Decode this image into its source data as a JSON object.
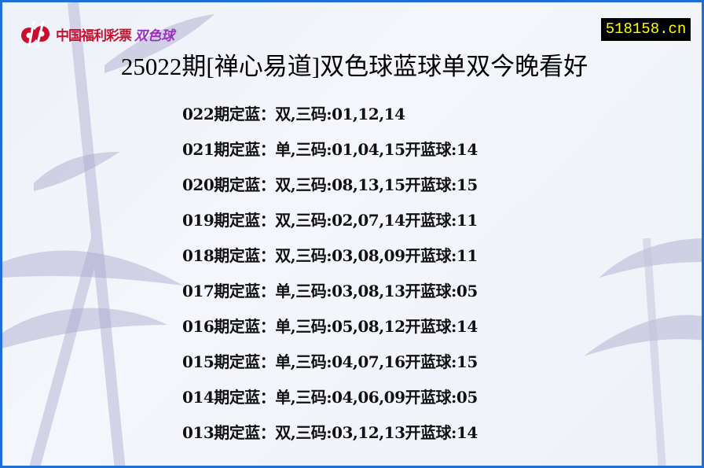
{
  "logo": {
    "text": "中国福利彩票",
    "text_accent": "双色球"
  },
  "site_badge": "518158.cn",
  "title": "25022期[禅心易道]双色球蓝球单双今晚看好",
  "rows": [
    {
      "period": "022期定蓝：",
      "parity": "双",
      "codes": ",三码:01,12,14",
      "result": ""
    },
    {
      "period": "021期定蓝：",
      "parity": "单",
      "codes": ",三码:01,04,15",
      "result": "开蓝球:14"
    },
    {
      "period": "020期定蓝：",
      "parity": "双",
      "codes": ",三码:08,13,15",
      "result": "开蓝球:15"
    },
    {
      "period": "019期定蓝：",
      "parity": "双",
      "codes": ",三码:02,07,14",
      "result": "开蓝球:11"
    },
    {
      "period": "018期定蓝：",
      "parity": "双",
      "codes": ",三码:03,08,09",
      "result": "开蓝球:11"
    },
    {
      "period": "017期定蓝：",
      "parity": "单",
      "codes": ",三码:03,08,13",
      "result": "开蓝球:05"
    },
    {
      "period": "016期定蓝：",
      "parity": "单",
      "codes": ",三码:05,08,12",
      "result": "开蓝球:14"
    },
    {
      "period": "015期定蓝：",
      "parity": "单",
      "codes": ",三码:04,07,16",
      "result": "开蓝球:15"
    },
    {
      "period": "014期定蓝：",
      "parity": "单",
      "codes": ",三码:04,06,09",
      "result": "开蓝球:05"
    },
    {
      "period": "013期定蓝：",
      "parity": "双",
      "codes": ",三码:03,12,13",
      "result": "开蓝球:14"
    }
  ],
  "colors": {
    "border": "#1d6fd6",
    "badge_bg": "#000000",
    "badge_text": "#ffff00",
    "logo_red": "#c8102e",
    "logo_purple": "#9b2fc0"
  }
}
